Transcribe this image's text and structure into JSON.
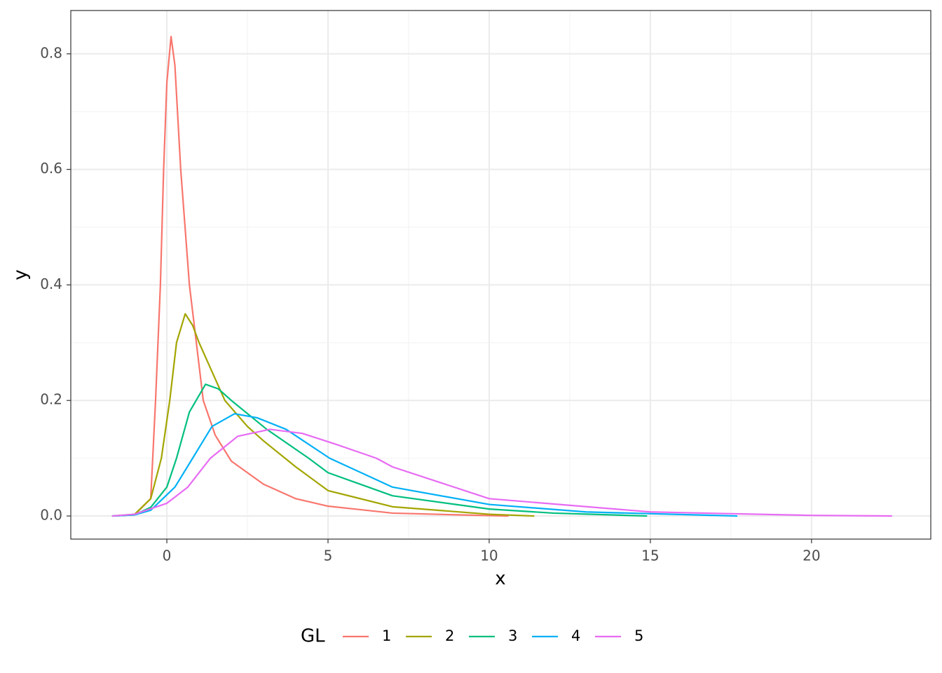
{
  "chart_data": {
    "type": "line",
    "x_label": "x",
    "y_label": "y",
    "legend_title": "GL",
    "legend_position": "bottom",
    "xlim": [
      -2.98,
      23.7
    ],
    "ylim": [
      -0.04,
      0.875
    ],
    "xticks": [
      0,
      5,
      10,
      15,
      20
    ],
    "yticks": [
      {
        "value": 0,
        "label": "0.0"
      },
      0.2,
      0.4,
      0.6,
      0.8
    ],
    "grid": true,
    "series": [
      {
        "name": "1",
        "color": "#F8766D",
        "x": [
          -1.7,
          -1,
          -0.5,
          -0.35,
          -0.2,
          -0.1,
          0,
          0.13,
          0.25,
          0.43,
          0.7,
          1.13,
          1.5,
          2,
          2.5,
          3,
          4,
          5,
          7,
          9,
          10.6
        ],
        "values": [
          0,
          0.002,
          0.03,
          0.2,
          0.4,
          0.6,
          0.75,
          0.83,
          0.78,
          0.6,
          0.4,
          0.2,
          0.14,
          0.095,
          0.075,
          0.055,
          0.03,
          0.017,
          0.005,
          0.002,
          0
        ]
      },
      {
        "name": "2",
        "color": "#A3A500",
        "x": [
          -1.7,
          -1,
          -0.5,
          -0.17,
          0.09,
          0.3,
          0.57,
          0.8,
          1,
          1.4,
          1.8,
          2.5,
          3,
          4,
          5,
          7,
          10,
          11.4
        ],
        "values": [
          0,
          0.003,
          0.03,
          0.1,
          0.2,
          0.3,
          0.35,
          0.33,
          0.3,
          0.25,
          0.2,
          0.155,
          0.13,
          0.085,
          0.044,
          0.016,
          0.003,
          0
        ]
      },
      {
        "name": "3",
        "color": "#00BF7D",
        "x": [
          -1.7,
          -1,
          -0.5,
          0,
          0.3,
          0.7,
          1.2,
          1.6,
          2,
          3.1,
          4.4,
          5,
          7,
          10,
          12,
          14.9
        ],
        "values": [
          0,
          0.002,
          0.015,
          0.05,
          0.1,
          0.18,
          0.228,
          0.22,
          0.2,
          0.15,
          0.1,
          0.075,
          0.035,
          0.012,
          0.005,
          0
        ]
      },
      {
        "name": "4",
        "color": "#00B0F6",
        "x": [
          -1.7,
          -1,
          -0.5,
          0.25,
          0.8,
          1.4,
          2.1,
          2.8,
          3.7,
          5.05,
          7,
          10,
          13,
          17.7
        ],
        "values": [
          0,
          0.002,
          0.01,
          0.05,
          0.1,
          0.155,
          0.177,
          0.17,
          0.15,
          0.1,
          0.05,
          0.02,
          0.007,
          0
        ]
      },
      {
        "name": "5",
        "color": "#E76BF3",
        "x": [
          -1.7,
          -1,
          0,
          0.65,
          1.35,
          2.2,
          3.2,
          4.2,
          5.2,
          6.5,
          7,
          10,
          15,
          20,
          22.5
        ],
        "values": [
          0,
          0.003,
          0.022,
          0.05,
          0.1,
          0.138,
          0.15,
          0.143,
          0.125,
          0.1,
          0.085,
          0.03,
          0.007,
          0.001,
          0
        ]
      }
    ]
  }
}
